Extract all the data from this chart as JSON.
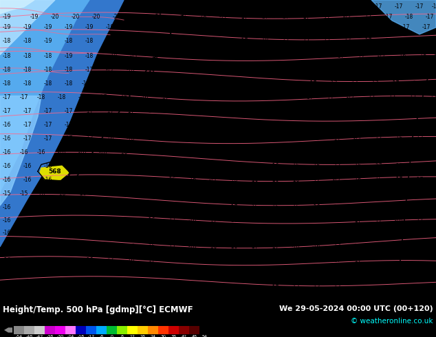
{
  "title_left": "Height/Temp. 500 hPa [gdmp][°C] ECMWF",
  "title_right": "We 29-05-2024 00:00 UTC (00+120)",
  "copyright": "© weatheronline.co.uk",
  "map_bg": "#00ccff",
  "blue_dark": "#3377cc",
  "blue_mid": "#55aaee",
  "blue_light": "#88ccff",
  "blue_pale": "#aaddff",
  "yellow_spot": "#dddd00",
  "fig_width": 6.34,
  "fig_height": 4.9,
  "dpi": 100,
  "colorbar_colors": [
    "#888888",
    "#aaaaaa",
    "#cccccc",
    "#cc00cc",
    "#ee00ee",
    "#ff77ff",
    "#0000bb",
    "#0055ee",
    "#00aaff",
    "#00bb33",
    "#88ee00",
    "#ffff00",
    "#ffcc00",
    "#ff8800",
    "#ff3300",
    "#cc0000",
    "#880000",
    "#550000"
  ],
  "tick_labels": [
    "-54",
    "-48",
    "-42",
    "-38",
    "-30",
    "-24",
    "-18",
    "-12",
    "-8",
    "0",
    "8",
    "12",
    "18",
    "24",
    "30",
    "38",
    "42",
    "48",
    "54"
  ]
}
